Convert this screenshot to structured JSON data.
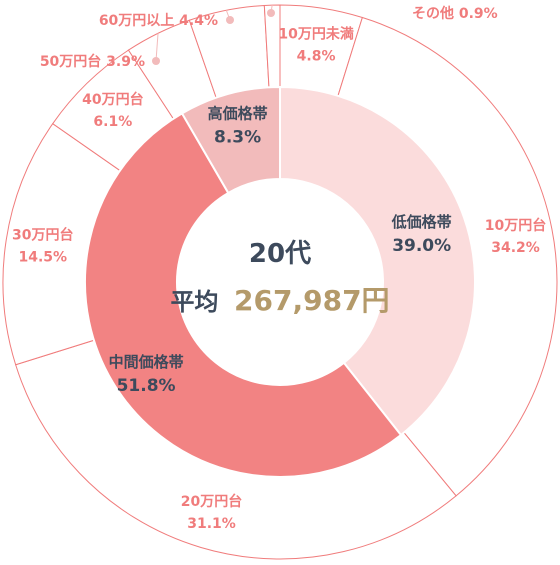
{
  "chart_data": {
    "type": "pie",
    "center": {
      "title": "20代",
      "avg_label": "平均",
      "avg_value": "267,987円"
    },
    "inner_ring": [
      {
        "label": "低価格帯",
        "value_text": "39.0%",
        "value": 39.0,
        "color": "#fbdcdc"
      },
      {
        "label": "中間価格帯",
        "value_text": "51.8%",
        "value": 51.8,
        "color": "#f28383"
      },
      {
        "label": "高価格帯",
        "value_text": "8.3%",
        "value": 8.3,
        "color": "#f2bbbb"
      }
    ],
    "outer_ring": [
      {
        "label": "10万円未満",
        "value_text": "4.8%",
        "value": 4.8
      },
      {
        "label": "10万円台",
        "value_text": "34.2%",
        "value": 34.2
      },
      {
        "label": "20万円台",
        "value_text": "31.1%",
        "value": 31.1
      },
      {
        "label": "30万円台",
        "value_text": "14.5%",
        "value": 14.5
      },
      {
        "label": "40万円台",
        "value_text": "6.1%",
        "value": 6.1
      },
      {
        "label": "50万円台",
        "value_text": "3.9%",
        "value": 3.9
      },
      {
        "label": "60万円以上",
        "value_text": "4.4%",
        "value": 4.4
      },
      {
        "label": "その他",
        "value_text": "0.9%",
        "value": 0.9
      }
    ],
    "colors": {
      "outer_stroke": "#f07c7c",
      "outer_label": "#f07c7c",
      "inner_label": "#3d4a5c",
      "avg_value": "#b49a6a"
    }
  }
}
